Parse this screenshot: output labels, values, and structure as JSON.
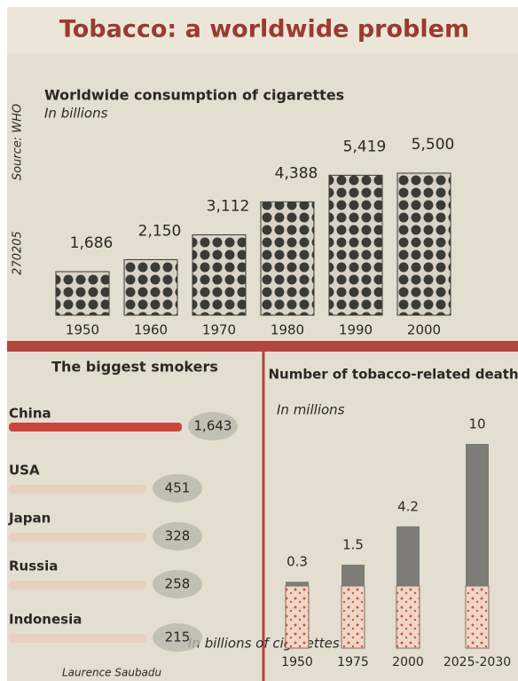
{
  "title": "Tobacco: a worldwide problem",
  "source": "Source: WHO",
  "code": "270205",
  "credit": "Laurence Saubadu",
  "chart_data": [
    {
      "type": "bar",
      "title": "Worldwide consumption of cigarettes",
      "subtitle": "In billions",
      "categories": [
        "1950",
        "1960",
        "1970",
        "1980",
        "1990",
        "2000"
      ],
      "values": [
        1686,
        2150,
        3112,
        4388,
        5419,
        5500
      ],
      "value_labels": [
        "1,686",
        "2,150",
        "3,112",
        "4,388",
        "5,419",
        "5,500"
      ],
      "color": "#3a3a36"
    },
    {
      "type": "bubble",
      "title": "The biggest smokers",
      "note": "In billions of cigarettes",
      "categories": [
        "China",
        "USA",
        "Japan",
        "Russia",
        "Indonesia"
      ],
      "values": [
        1643,
        451,
        328,
        258,
        215
      ],
      "value_labels": [
        "1,643",
        "451",
        "328",
        "258",
        "215"
      ],
      "color": "#b9b6ad"
    },
    {
      "type": "column",
      "title": "Number of tobacco-related deaths",
      "subtitle": "In millions",
      "categories": [
        "1950",
        "1975",
        "2000",
        "2025-2030"
      ],
      "values": [
        0.3,
        1.5,
        4.2,
        10
      ],
      "color": "#7d7c76"
    }
  ]
}
